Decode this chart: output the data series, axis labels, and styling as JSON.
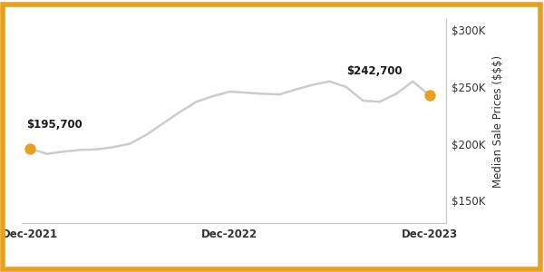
{
  "ylabel": "Median Sale Prices ($$$)",
  "background_color": "#ffffff",
  "border_color": "#E8A020",
  "line_color": "#cccccc",
  "marker_color": "#E8A020",
  "ylim": [
    130000,
    310000
  ],
  "yticks": [
    150000,
    200000,
    250000,
    300000
  ],
  "ytick_labels": [
    "$150K",
    "$200K",
    "$250K",
    "$300K"
  ],
  "xtick_positions": [
    0,
    12,
    24
  ],
  "xtick_labels": [
    "Dec-2021",
    "Dec-2022",
    "Dec-2023"
  ],
  "start_label": "$195,700",
  "end_label": "$242,700",
  "x_values": [
    0,
    1,
    2,
    3,
    4,
    5,
    6,
    7,
    8,
    9,
    10,
    11,
    12,
    13,
    14,
    15,
    16,
    17,
    18,
    19,
    20,
    21,
    22,
    23,
    24
  ],
  "y_values": [
    195700,
    191000,
    193000,
    194500,
    195000,
    197000,
    200000,
    208000,
    218000,
    228000,
    237000,
    242000,
    246000,
    245000,
    244000,
    243500,
    248000,
    252000,
    255000,
    250000,
    238000,
    237000,
    244000,
    255000,
    242700
  ]
}
